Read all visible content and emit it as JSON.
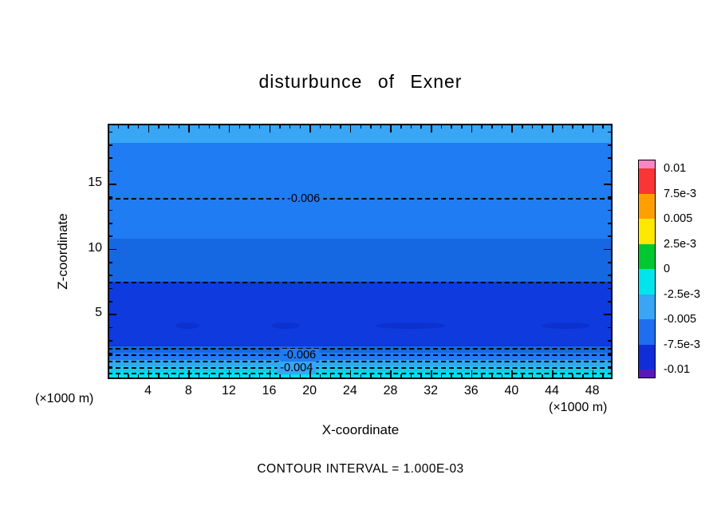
{
  "title": "disturbunce of Exner",
  "contour_note": "CONTOUR INTERVAL = 1.000E-03",
  "axes": {
    "x_label": "X-coordinate",
    "z_label": "Z-coordinate",
    "x_unit_left": "(×1000 m)",
    "x_unit_right": "(×1000 m)"
  },
  "chart_data": {
    "type": "heatmap",
    "subtype": "filled-contour",
    "title": "disturbunce of Exner",
    "xlabel": "X-coordinate",
    "ylabel": "Z-coordinate",
    "x_unit": "(×1000 m)",
    "y_unit": "(×1000 m)",
    "xlim": [
      0,
      50
    ],
    "ylim": [
      0,
      19.6
    ],
    "x_major_ticks": [
      4,
      8,
      12,
      16,
      20,
      24,
      28,
      32,
      36,
      40,
      44,
      48
    ],
    "y_major_ticks": [
      5,
      10,
      15
    ],
    "minor_tick_step": 1,
    "contour_interval": "1.000E-03",
    "grid": false,
    "bands": [
      {
        "z_from": 18.1,
        "z_to": 19.6,
        "color": "#38a5f5"
      },
      {
        "z_from": 10.8,
        "z_to": 18.1,
        "color": "#1f7cf2"
      },
      {
        "z_from": 7.5,
        "z_to": 10.8,
        "color": "#1668e2"
      },
      {
        "z_from": 2.5,
        "z_to": 7.5,
        "color": "#0f3add"
      },
      {
        "z_from": 2.0,
        "z_to": 2.5,
        "color": "#1668e2"
      },
      {
        "z_from": 1.5,
        "z_to": 2.0,
        "color": "#1f7cf2"
      },
      {
        "z_from": 1.0,
        "z_to": 1.5,
        "color": "#38a5f5"
      },
      {
        "z_from": 0.55,
        "z_to": 1.0,
        "color": "#18c9f0"
      },
      {
        "z_from": 0.0,
        "z_to": 0.55,
        "color": "#00e2f2"
      }
    ],
    "patches": [
      {
        "x_from": 6.7,
        "x_to": 9.1,
        "z_center": 4.1,
        "z_height": 0.5,
        "color": "#0d31cf"
      },
      {
        "x_from": 16.2,
        "x_to": 19.0,
        "z_center": 4.1,
        "z_height": 0.5,
        "color": "#0d31cf"
      },
      {
        "x_from": 26.5,
        "x_to": 33.6,
        "z_center": 4.1,
        "z_height": 0.5,
        "color": "#0d31cf"
      },
      {
        "x_from": 43.0,
        "x_to": 47.8,
        "z_center": 4.1,
        "z_height": 0.5,
        "color": "#0d31cf"
      }
    ],
    "contour_lines": [
      {
        "z": 13.9,
        "label": "-0.006",
        "label_x": 19.4,
        "label_bg": "#1f7cf2"
      },
      {
        "z": 7.5,
        "label": null
      },
      {
        "z": 2.39,
        "label": null
      },
      {
        "z": 1.9,
        "label": "-0.006",
        "label_x": 19.0,
        "label_bg": "#1f7cf2"
      },
      {
        "z": 1.41,
        "label": null
      },
      {
        "z": 0.92,
        "label": "-0.004",
        "label_x": 18.7,
        "label_bg": "#38a5f5"
      },
      {
        "z": 0.49,
        "label": null
      }
    ],
    "colorbar": {
      "position": "right",
      "labels": [
        "0.01",
        "7.5e-3",
        "0.005",
        "2.5e-3",
        "0",
        "-2.5e-3",
        "-0.005",
        "-7.5e-3",
        "-0.01"
      ],
      "segment_colors": [
        "#f987c5",
        "#f93535",
        "#ffa000",
        "#ffe800",
        "#00c830",
        "#00e4ee",
        "#38a5f5",
        "#1f6ef0",
        "#0f2ed8",
        "#5a18b8"
      ]
    }
  }
}
